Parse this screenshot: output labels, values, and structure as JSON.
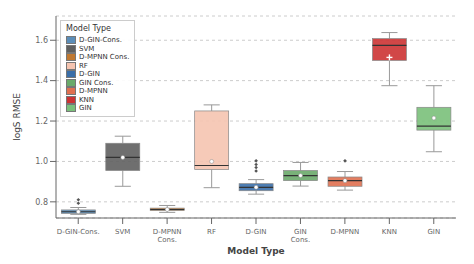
{
  "chart_data": {
    "type": "box",
    "title": "",
    "xlabel": "Model Type",
    "ylabel": "logS RMSE",
    "categories": [
      "D-GIN-Cons.",
      "SVM",
      "D-MPNN Cons.",
      "RF",
      "D-GIN",
      "GIN Cons.",
      "D-MPNN",
      "KNN",
      "GIN"
    ],
    "colors": [
      "#5b8db8",
      "#5f5f5f",
      "#c07830",
      "#f5c4b0",
      "#3a6ea8",
      "#6aaa6a",
      "#e07050",
      "#cc3333",
      "#7ac07a"
    ],
    "boxes": [
      {
        "whislo": 0.738,
        "q1": 0.743,
        "med": 0.751,
        "q3": 0.76,
        "whishi": 0.772,
        "mean": 0.751,
        "fliers": [
          0.793,
          0.81
        ],
        "marker": "o"
      },
      {
        "whislo": 0.877,
        "q1": 0.955,
        "med": 1.02,
        "q3": 1.09,
        "whishi": 1.125,
        "mean": 1.02,
        "fliers": [],
        "marker": "o"
      },
      {
        "whislo": 0.748,
        "q1": 0.757,
        "med": 0.762,
        "q3": 0.769,
        "whishi": 0.782,
        "mean": 0.762,
        "fliers": [],
        "marker": "o"
      },
      {
        "whislo": 0.87,
        "q1": 0.96,
        "med": 0.98,
        "q3": 1.25,
        "whishi": 1.28,
        "mean": 1.0,
        "fliers": [],
        "marker": "o"
      },
      {
        "whislo": 0.838,
        "q1": 0.855,
        "med": 0.872,
        "q3": 0.89,
        "whishi": 0.91,
        "mean": 0.872,
        "fliers": [
          0.953,
          0.97,
          0.985,
          1.003
        ],
        "marker": "o"
      },
      {
        "whislo": 0.878,
        "q1": 0.905,
        "med": 0.93,
        "q3": 0.955,
        "whishi": 0.995,
        "mean": 0.93,
        "fliers": [],
        "marker": "o"
      },
      {
        "whislo": 0.858,
        "q1": 0.877,
        "med": 0.905,
        "q3": 0.923,
        "whishi": 0.95,
        "mean": 0.905,
        "fliers": [
          1.003
        ],
        "marker": "o"
      },
      {
        "whislo": 1.375,
        "q1": 1.5,
        "med": 1.575,
        "q3": 1.608,
        "whishi": 1.638,
        "mean": 1.515,
        "fliers": [],
        "marker": "+"
      },
      {
        "whislo": 1.048,
        "q1": 1.155,
        "med": 1.175,
        "q3": 1.268,
        "whishi": 1.375,
        "mean": 1.215,
        "fliers": [],
        "marker": "o"
      }
    ],
    "ylim": [
      0.72,
      1.72
    ],
    "yticks": [
      0.8,
      {
        "value": 1.0,
        "label": "1.0"
      },
      1.2,
      1.4,
      1.6
    ],
    "grid": true,
    "legend": "upper left",
    "legend_title": "Model Type"
  }
}
